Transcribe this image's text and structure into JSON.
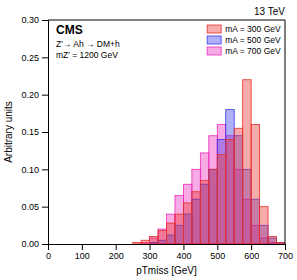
{
  "chart_data": {
    "type": "histogram",
    "title": "13 TeV",
    "x_label": "pTmiss [GeV]",
    "y_label": "Arbitrary units",
    "annotations": [
      "CMS",
      "Z'→ Ah → DM+h",
      "mZ′ = 1200 GeV"
    ],
    "bins": [
      0,
      25,
      50,
      75,
      100,
      125,
      150,
      175,
      200,
      225,
      250,
      275,
      300,
      325,
      350,
      375,
      400,
      425,
      450,
      475,
      500,
      525,
      550,
      575,
      600,
      625,
      650,
      675,
      700
    ],
    "series": [
      {
        "name": "mA = 300 GeV",
        "color": "#e8302a",
        "values": [
          0,
          0,
          0,
          0,
          0,
          0,
          0,
          0,
          0,
          0,
          0.002,
          0.005,
          0.01,
          0.018,
          0.028,
          0.04,
          0.055,
          0.07,
          0.085,
          0.1,
          0.12,
          0.14,
          0.155,
          0.22,
          0.16,
          0.05,
          0.01,
          0.002
        ]
      },
      {
        "name": "mA = 500 GeV",
        "color": "#3a3aee",
        "values": [
          0,
          0,
          0,
          0,
          0,
          0,
          0,
          0,
          0,
          0,
          0,
          0,
          0.002,
          0.005,
          0.012,
          0.025,
          0.04,
          0.06,
          0.08,
          0.1,
          0.14,
          0.18,
          0.145,
          0.1,
          0.06,
          0.025,
          0.008,
          0.002
        ]
      },
      {
        "name": "mA = 700 GeV",
        "color": "#ee2abb",
        "values": [
          0,
          0,
          0,
          0,
          0,
          0,
          0,
          0,
          0,
          0,
          0,
          0.002,
          0.008,
          0.02,
          0.04,
          0.065,
          0.08,
          0.1,
          0.122,
          0.145,
          0.16,
          0.145,
          0.1,
          0.06,
          0.025,
          0.008,
          0.002,
          0.0
        ]
      }
    ],
    "xlim": [
      0,
      700
    ],
    "xticks": [
      0,
      100,
      200,
      300,
      400,
      500,
      600,
      700
    ],
    "ylim": [
      0,
      0.3
    ],
    "yticks": [
      {
        "value": 0,
        "label": "0.00"
      },
      {
        "value": 0.05,
        "label": "0.05"
      },
      {
        "value": 0.1,
        "label": "0.10"
      },
      {
        "value": 0.15,
        "label": "0.15"
      },
      {
        "value": 0.2,
        "label": "0.20"
      },
      {
        "value": 0.25,
        "label": "0.25"
      },
      {
        "value": 0.3,
        "label": "0.30"
      }
    ],
    "legend": "upper right",
    "grid": false
  }
}
